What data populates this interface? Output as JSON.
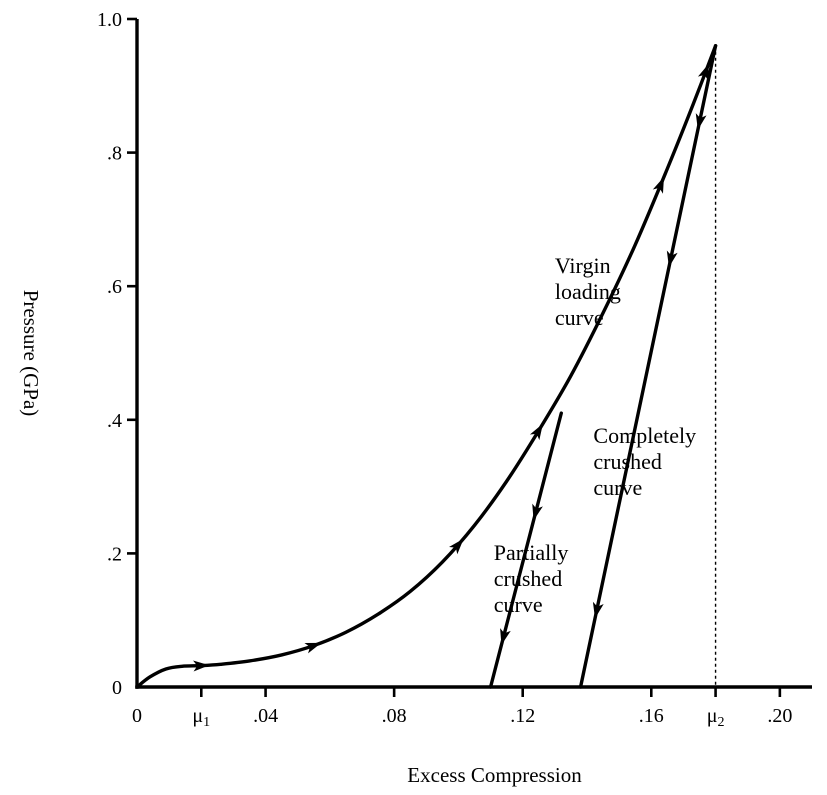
{
  "chart_data": {
    "type": "line",
    "title": "",
    "xlabel": "Excess Compression",
    "ylabel": "Pressure (GPa)",
    "xlim": [
      0,
      0.21
    ],
    "ylim": [
      0,
      1.0
    ],
    "x_ticks": [
      {
        "value": 0,
        "label": "0"
      },
      {
        "value": 0.02,
        "label": "μ",
        "sub": "1"
      },
      {
        "value": 0.04,
        "label": ".04"
      },
      {
        "value": 0.08,
        "label": ".08"
      },
      {
        "value": 0.12,
        "label": ".12"
      },
      {
        "value": 0.16,
        "label": ".16"
      },
      {
        "value": 0.18,
        "label": "μ",
        "sub": "2"
      },
      {
        "value": 0.2,
        "label": ".20"
      }
    ],
    "y_ticks": [
      {
        "value": 0,
        "label": "0"
      },
      {
        "value": 0.2,
        "label": ".2"
      },
      {
        "value": 0.4,
        "label": ".4"
      },
      {
        "value": 0.6,
        "label": ".6"
      },
      {
        "value": 0.8,
        "label": ".8"
      },
      {
        "value": 1.0,
        "label": "1.0"
      }
    ],
    "grid": false,
    "reference_line": {
      "x": 0.18,
      "style": "dotted"
    },
    "series": [
      {
        "x": [
          0,
          0.004,
          0.009,
          0.014,
          0.02,
          0.026,
          0.035,
          0.045,
          0.055,
          0.065,
          0.075,
          0.085,
          0.095,
          0.105,
          0.115,
          0.125,
          0.135,
          0.145,
          0.155,
          0.165,
          0.173,
          0.18
        ],
        "y": [
          0,
          0.015,
          0.027,
          0.031,
          0.032,
          0.034,
          0.039,
          0.048,
          0.062,
          0.082,
          0.109,
          0.143,
          0.187,
          0.242,
          0.308,
          0.384,
          0.466,
          0.56,
          0.662,
          0.776,
          0.872,
          0.96
        ],
        "arrows_at_x": [
          0.02,
          0.055,
          0.1,
          0.125,
          0.163,
          0.177
        ]
      },
      {
        "x": [
          0.11,
          0.132
        ],
        "y": [
          0,
          0.41
        ],
        "arrows_at_x": [
          0.124,
          0.114
        ]
      },
      {
        "x": [
          0.138,
          0.18
        ],
        "y": [
          0,
          0.96
        ],
        "arrows_at_x": [
          0.175,
          0.166,
          0.143
        ]
      }
    ],
    "annotations": [
      {
        "lines": [
          "Virgin",
          "loading",
          "curve"
        ],
        "x": 0.13,
        "y": 0.62
      },
      {
        "lines": [
          "Partially",
          "crushed",
          "curve"
        ],
        "x": 0.111,
        "y": 0.19
      },
      {
        "lines": [
          "Completely",
          "crushed",
          "curve"
        ],
        "x": 0.142,
        "y": 0.365
      }
    ]
  }
}
